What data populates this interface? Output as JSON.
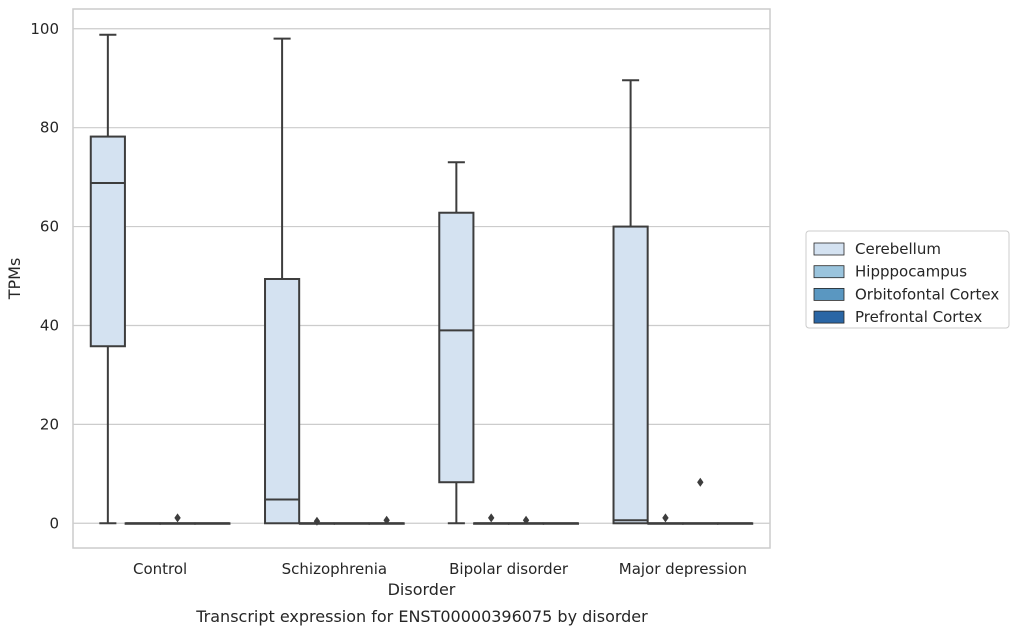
{
  "chart_data": {
    "type": "box",
    "title": "",
    "caption": "Transcript expression for ENST00000396075 by disorder",
    "xlabel": "Disorder",
    "ylabel": "TPMs",
    "ylim": [
      -5,
      104
    ],
    "yticks": [
      0,
      20,
      40,
      60,
      80,
      100
    ],
    "grid": "horizontal",
    "legend_position": "right",
    "categories": [
      "Control",
      "Schizophrenia",
      "Bipolar disorder",
      "Major depression"
    ],
    "series": [
      {
        "name": "Cerebellum",
        "color": "#d4e2f1",
        "boxes": [
          {
            "whisker_low": 0,
            "q1": 35.8,
            "median": 68.8,
            "q3": 78.2,
            "whisker_high": 98.8,
            "outliers": []
          },
          {
            "whisker_low": 0,
            "q1": 0,
            "median": 4.8,
            "q3": 49.4,
            "whisker_high": 98.0,
            "outliers": []
          },
          {
            "whisker_low": 0,
            "q1": 8.3,
            "median": 39.0,
            "q3": 62.8,
            "whisker_high": 73.0,
            "outliers": []
          },
          {
            "whisker_low": 0,
            "q1": 0,
            "median": 0.6,
            "q3": 60.0,
            "whisker_high": 89.6,
            "outliers": []
          }
        ]
      },
      {
        "name": "Hipppocampus",
        "color": "#9ac4dd",
        "boxes": [
          {
            "whisker_low": 0,
            "q1": 0,
            "median": 0,
            "q3": 0,
            "whisker_high": 0,
            "outliers": []
          },
          {
            "whisker_low": 0,
            "q1": 0,
            "median": 0,
            "q3": 0,
            "whisker_high": 0,
            "outliers": [
              0.4
            ]
          },
          {
            "whisker_low": 0,
            "q1": 0,
            "median": 0,
            "q3": 0,
            "whisker_high": 0,
            "outliers": [
              1.1
            ]
          },
          {
            "whisker_low": 0,
            "q1": 0,
            "median": 0,
            "q3": 0,
            "whisker_high": 0,
            "outliers": [
              1.1
            ]
          }
        ]
      },
      {
        "name": "Orbitofontal Cortex",
        "color": "#5a97c1",
        "boxes": [
          {
            "whisker_low": 0,
            "q1": 0,
            "median": 0,
            "q3": 0,
            "whisker_high": 0,
            "outliers": [
              1.1
            ]
          },
          {
            "whisker_low": 0,
            "q1": 0,
            "median": 0,
            "q3": 0,
            "whisker_high": 0,
            "outliers": []
          },
          {
            "whisker_low": 0,
            "q1": 0,
            "median": 0,
            "q3": 0,
            "whisker_high": 0,
            "outliers": [
              0.6
            ]
          },
          {
            "whisker_low": 0,
            "q1": 0,
            "median": 0,
            "q3": 0,
            "whisker_high": 0,
            "outliers": [
              8.3
            ]
          }
        ]
      },
      {
        "name": "Prefrontal Cortex",
        "color": "#2a66a5",
        "boxes": [
          {
            "whisker_low": 0,
            "q1": 0,
            "median": 0,
            "q3": 0,
            "whisker_high": 0,
            "outliers": []
          },
          {
            "whisker_low": 0,
            "q1": 0,
            "median": 0,
            "q3": 0,
            "whisker_high": 0,
            "outliers": [
              0.6
            ]
          },
          {
            "whisker_low": 0,
            "q1": 0,
            "median": 0,
            "q3": 0,
            "whisker_high": 0,
            "outliers": []
          },
          {
            "whisker_low": 0,
            "q1": 0,
            "median": 0,
            "q3": 0,
            "whisker_high": 0,
            "outliers": []
          }
        ]
      }
    ]
  }
}
